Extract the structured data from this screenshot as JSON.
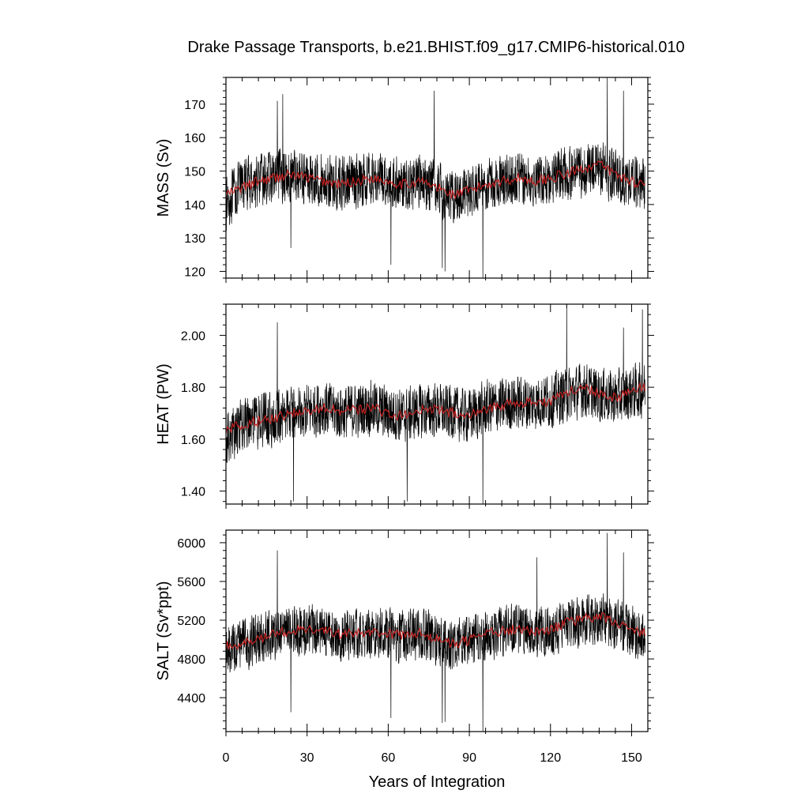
{
  "figure": {
    "title": "Drake Passage Transports, b.e21.BHIST.f09_g17.CMIP6-historical.010",
    "xlabel": "Years of Integration"
  },
  "colors": {
    "raw_line": "#000000",
    "smooth_line": "#cc2222",
    "frame": "#000000"
  },
  "chart_data": [
    {
      "type": "line",
      "ylabel": "MASS (Sv)",
      "xlim": [
        0,
        156
      ],
      "ylim": [
        118,
        178
      ],
      "xticks": [
        0,
        30,
        60,
        90,
        120,
        150
      ],
      "xtick_labels": [
        "0",
        "30",
        "60",
        "90",
        "120",
        "150"
      ],
      "yticks": [
        120,
        130,
        140,
        150,
        160,
        170
      ],
      "ytick_labels": [
        "120",
        "130",
        "140",
        "150",
        "160",
        "170"
      ],
      "x": [
        0,
        6,
        12,
        18,
        24,
        30,
        36,
        42,
        48,
        54,
        60,
        66,
        72,
        78,
        84,
        90,
        96,
        102,
        108,
        114,
        120,
        126,
        132,
        138,
        144,
        150,
        155
      ],
      "series": [
        {
          "role": "monthly",
          "values": [
            140,
            146,
            147,
            148,
            149,
            148,
            147,
            146,
            147,
            148,
            147,
            146,
            147,
            145,
            142,
            144,
            146,
            147,
            148,
            147,
            148,
            149,
            150,
            151,
            148,
            147,
            146
          ]
        },
        {
          "role": "smoothed",
          "values": [
            143,
            145,
            147,
            148,
            149,
            148,
            147,
            146,
            147,
            148,
            147,
            146,
            147,
            145,
            143,
            144,
            146,
            147,
            148,
            147,
            148,
            149,
            151,
            152,
            149,
            147,
            146
          ]
        }
      ],
      "noise_amplitude": 9,
      "spikes": [
        [
          19,
          171
        ],
        [
          21,
          173
        ],
        [
          24,
          127
        ],
        [
          61,
          122
        ],
        [
          77,
          174
        ],
        [
          80,
          121
        ],
        [
          81,
          120
        ],
        [
          95,
          118
        ],
        [
          141,
          178
        ],
        [
          147,
          174
        ]
      ]
    },
    {
      "type": "line",
      "ylabel": "HEAT (PW)",
      "xlim": [
        0,
        156
      ],
      "ylim": [
        1.35,
        2.12
      ],
      "xticks": [
        0,
        30,
        60,
        90,
        120,
        150
      ],
      "xtick_labels": [
        "0",
        "30",
        "60",
        "90",
        "120",
        "150"
      ],
      "yticks": [
        1.4,
        1.6,
        1.8,
        2.0
      ],
      "ytick_labels": [
        "1.40",
        "1.60",
        "1.80",
        "2.00"
      ],
      "x": [
        0,
        6,
        12,
        18,
        24,
        30,
        36,
        42,
        48,
        54,
        60,
        66,
        72,
        78,
        84,
        90,
        96,
        102,
        108,
        114,
        120,
        126,
        132,
        138,
        144,
        150,
        155
      ],
      "series": [
        {
          "role": "monthly",
          "values": [
            1.6,
            1.65,
            1.67,
            1.68,
            1.7,
            1.71,
            1.72,
            1.7,
            1.71,
            1.72,
            1.7,
            1.69,
            1.71,
            1.71,
            1.7,
            1.69,
            1.72,
            1.73,
            1.74,
            1.74,
            1.75,
            1.77,
            1.79,
            1.77,
            1.76,
            1.78,
            1.79
          ]
        },
        {
          "role": "smoothed",
          "values": [
            1.63,
            1.66,
            1.67,
            1.68,
            1.7,
            1.71,
            1.72,
            1.71,
            1.71,
            1.72,
            1.7,
            1.69,
            1.71,
            1.72,
            1.7,
            1.7,
            1.72,
            1.73,
            1.74,
            1.74,
            1.75,
            1.78,
            1.8,
            1.78,
            1.76,
            1.79,
            1.8
          ]
        }
      ],
      "noise_amplitude": 0.12,
      "spikes": [
        [
          19,
          2.05
        ],
        [
          25,
          1.36
        ],
        [
          67,
          1.36
        ],
        [
          95,
          1.35
        ],
        [
          126,
          2.12
        ],
        [
          147,
          2.03
        ],
        [
          154,
          2.1
        ]
      ]
    },
    {
      "type": "line",
      "ylabel": "SALT (Sv*ppt)",
      "xlim": [
        0,
        156
      ],
      "ylim": [
        4050,
        6130
      ],
      "xticks": [
        0,
        30,
        60,
        90,
        120,
        150
      ],
      "xtick_labels": [
        "0",
        "30",
        "60",
        "90",
        "120",
        "150"
      ],
      "yticks": [
        4400,
        4800,
        5200,
        5600,
        6000
      ],
      "ytick_labels": [
        "4400",
        "4800",
        "5200",
        "5600",
        "6000"
      ],
      "x": [
        0,
        6,
        12,
        18,
        24,
        30,
        36,
        42,
        48,
        54,
        60,
        66,
        72,
        78,
        84,
        90,
        96,
        102,
        108,
        114,
        120,
        126,
        132,
        138,
        144,
        150,
        155
      ],
      "series": [
        {
          "role": "monthly",
          "values": [
            4900,
            4950,
            5000,
            5050,
            5080,
            5100,
            5080,
            5050,
            5060,
            5080,
            5050,
            5030,
            5060,
            5000,
            4950,
            4980,
            5050,
            5080,
            5100,
            5080,
            5100,
            5150,
            5200,
            5220,
            5150,
            5100,
            5050
          ]
        },
        {
          "role": "smoothed",
          "values": [
            4930,
            4960,
            5010,
            5060,
            5090,
            5110,
            5090,
            5060,
            5070,
            5090,
            5060,
            5040,
            5070,
            5010,
            4960,
            4990,
            5060,
            5090,
            5110,
            5090,
            5110,
            5170,
            5220,
            5240,
            5170,
            5110,
            5060
          ]
        }
      ],
      "noise_amplitude": 300,
      "spikes": [
        [
          19,
          5920
        ],
        [
          24,
          4250
        ],
        [
          61,
          4190
        ],
        [
          80,
          4140
        ],
        [
          81,
          4150
        ],
        [
          95,
          4050
        ],
        [
          115,
          5850
        ],
        [
          141,
          6100
        ],
        [
          147,
          5900
        ]
      ]
    }
  ]
}
